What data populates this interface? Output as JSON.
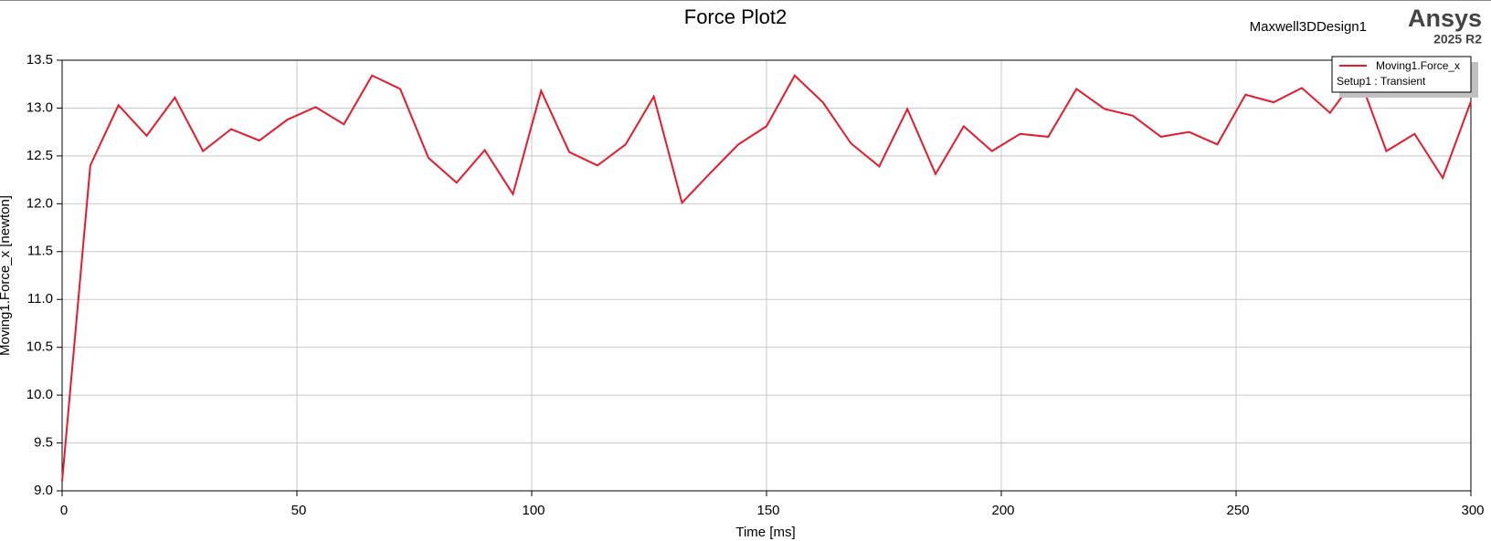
{
  "chart_data": {
    "type": "line",
    "title": "Force Plot2",
    "design": "Maxwell3DDesign1",
    "brand": "Ansys",
    "version": "2025 R2",
    "xlabel": "Time [ms]",
    "ylabel": "Moving1.Force_x [newton]",
    "legend_subtitle": "Setup1 : Transient",
    "x": [
      0,
      6,
      12,
      18,
      24,
      30,
      36,
      42,
      48,
      54,
      60,
      66,
      72,
      78,
      84,
      90,
      96,
      102,
      108,
      114,
      120,
      126,
      132,
      138,
      144,
      150,
      156,
      162,
      168,
      174,
      180,
      186,
      192,
      198,
      204,
      210,
      216,
      222,
      228,
      234,
      240,
      246,
      252,
      258,
      264,
      270,
      276,
      282,
      288,
      294,
      300
    ],
    "series": [
      {
        "name": "Moving1.Force_x",
        "color": "#e8192c",
        "values": [
          9.1,
          12.4,
          13.03,
          12.71,
          13.11,
          12.55,
          12.78,
          12.66,
          12.88,
          13.01,
          12.83,
          13.34,
          13.2,
          12.48,
          12.22,
          12.56,
          12.1,
          13.18,
          12.54,
          12.4,
          12.62,
          13.12,
          12.01,
          12.32,
          12.62,
          12.81,
          13.34,
          13.06,
          12.63,
          12.39,
          12.99,
          12.31,
          12.81,
          12.55,
          12.73,
          12.7,
          13.2,
          12.99,
          12.92,
          12.7,
          12.75,
          12.62,
          13.14,
          13.06,
          13.21,
          12.95,
          13.35,
          12.55,
          12.73,
          12.27,
          13.07
        ]
      }
    ],
    "xlim": [
      0,
      300
    ],
    "xticks": [
      0,
      50,
      100,
      150,
      200,
      250,
      300
    ],
    "ylim": [
      9,
      13.5
    ],
    "yticks": [
      {
        "value": 9,
        "label": "9.0"
      },
      9.5,
      {
        "value": 10,
        "label": "10.0"
      },
      10.5,
      {
        "value": 11,
        "label": "11.0"
      },
      11.5,
      {
        "value": 12,
        "label": "12.0"
      },
      12.5,
      {
        "value": 13,
        "label": "13.0"
      },
      13.5
    ],
    "grid": true,
    "legend": "upper right"
  }
}
